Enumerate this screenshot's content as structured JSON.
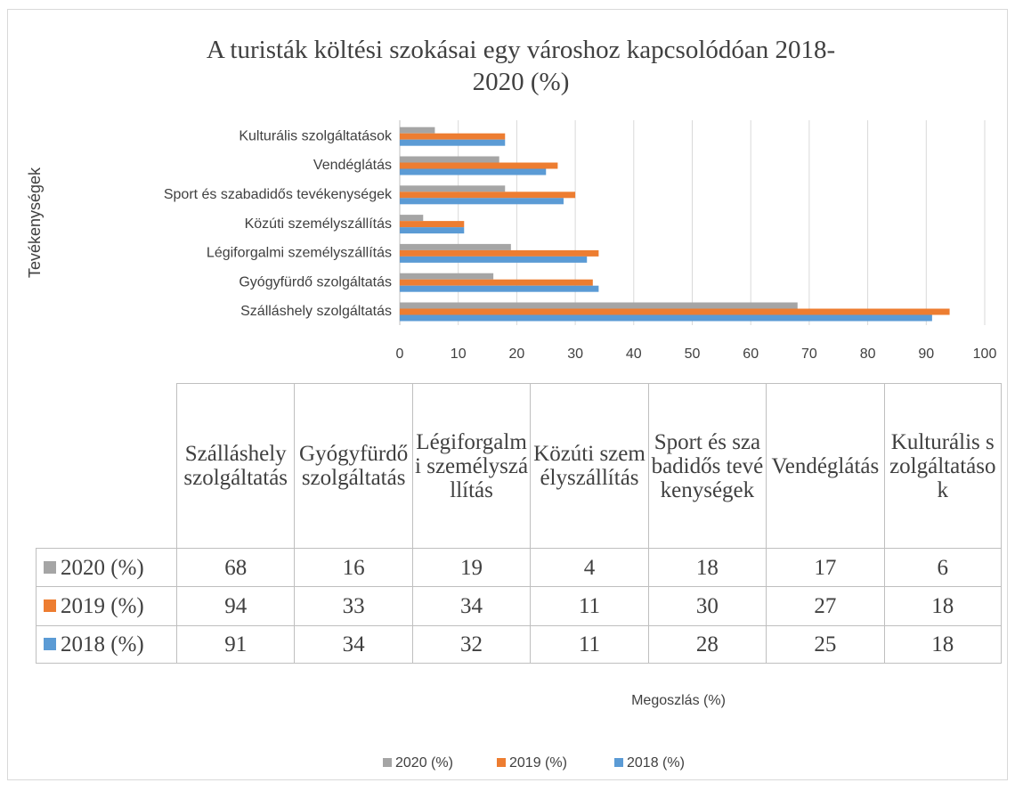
{
  "chart_data": {
    "type": "bar",
    "orientation": "horizontal",
    "title": "A turisták költési szokásai egy városhoz kapcsolódóan 2018-2020 (%)",
    "y_axis_label": "Tevékenységek",
    "x_axis_label": "Megoszlás (%)",
    "categories": [
      "Szálláshely szolgáltatás",
      "Gyógyfürdő szolgáltatás",
      "Légiforgalmi személyszállítás",
      "Közúti személyszállítás",
      "Sport és szabadidős tevékenységek",
      "Vendéglátás",
      "Kulturális szolgáltatások"
    ],
    "series": [
      {
        "name": "2020 (%)",
        "color": "#a5a5a5",
        "values": [
          68,
          16,
          19,
          4,
          18,
          17,
          6
        ]
      },
      {
        "name": "2019 (%)",
        "color": "#ed7d31",
        "values": [
          94,
          33,
          34,
          11,
          30,
          27,
          18
        ]
      },
      {
        "name": "2018 (%)",
        "color": "#5b9bd5",
        "values": [
          91,
          34,
          32,
          11,
          28,
          25,
          18
        ]
      }
    ],
    "xlim": [
      0,
      100
    ],
    "xticks": [
      0,
      10,
      20,
      30,
      40,
      50,
      60,
      70,
      80,
      90,
      100
    ],
    "grid": true,
    "legend": "bottom",
    "data_table": true
  }
}
